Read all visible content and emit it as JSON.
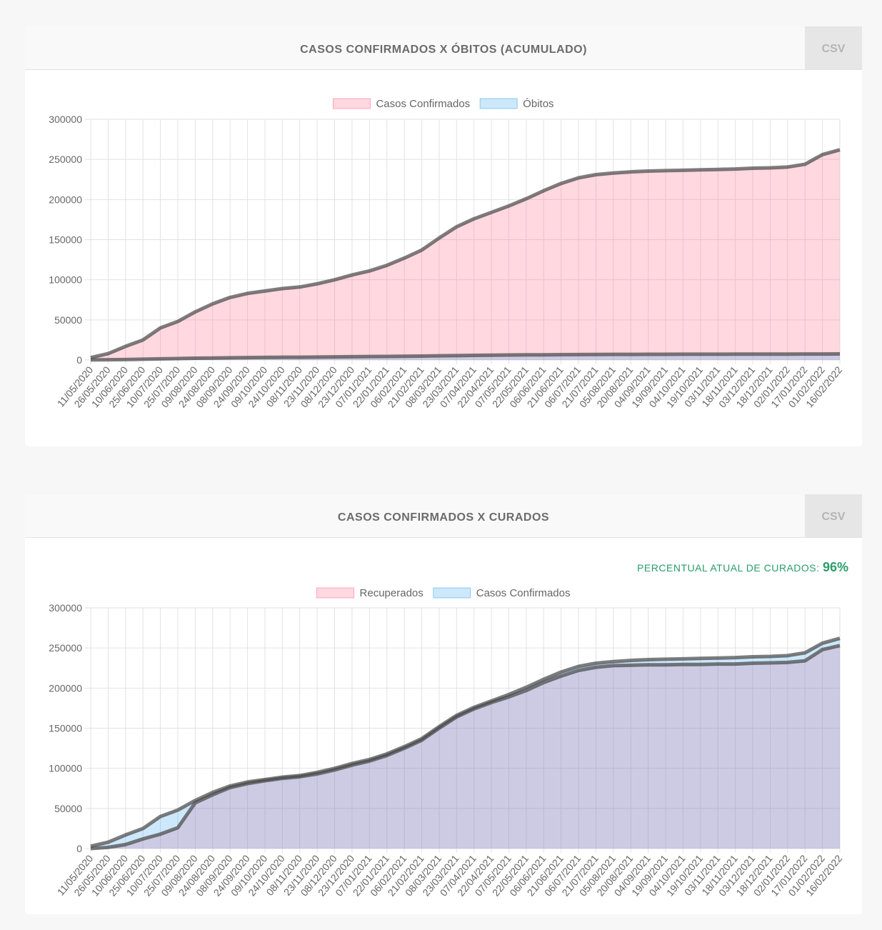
{
  "chart_data": [
    {
      "type": "area",
      "title": "CASOS CONFIRMADOS X ÓBITOS (ACUMULADO)",
      "categories": [
        "11/05/2020",
        "26/05/2020",
        "10/06/2020",
        "25/06/2020",
        "10/07/2020",
        "25/07/2020",
        "09/08/2020",
        "24/08/2020",
        "08/09/2020",
        "24/09/2020",
        "09/10/2020",
        "24/10/2020",
        "08/11/2020",
        "23/11/2020",
        "08/12/2020",
        "23/12/2020",
        "07/01/2021",
        "22/01/2021",
        "06/02/2021",
        "21/02/2021",
        "08/03/2021",
        "23/03/2021",
        "07/04/2021",
        "22/04/2021",
        "07/05/2021",
        "22/05/2021",
        "06/06/2021",
        "21/06/2021",
        "06/07/2021",
        "21/07/2021",
        "05/08/2021",
        "20/08/2021",
        "04/09/2021",
        "19/09/2021",
        "04/10/2021",
        "19/10/2021",
        "03/11/2021",
        "18/11/2021",
        "03/12/2021",
        "18/12/2021",
        "02/01/2022",
        "17/01/2022",
        "01/02/2022",
        "16/02/2022"
      ],
      "series": [
        {
          "name": "Casos Confirmados",
          "color": "rgba(255,99,132,0.25)",
          "values": [
            3000,
            8000,
            17000,
            25000,
            40000,
            48000,
            60000,
            70000,
            78000,
            83000,
            86000,
            89000,
            91000,
            95000,
            100000,
            106000,
            111000,
            118000,
            127000,
            137000,
            152000,
            166000,
            176000,
            184000,
            192000,
            201000,
            211000,
            220000,
            227000,
            231000,
            233000,
            234500,
            235500,
            236000,
            236500,
            237000,
            237500,
            238000,
            239000,
            239500,
            240500,
            244000,
            256000,
            262000
          ]
        },
        {
          "name": "Óbitos",
          "color": "rgba(54,162,235,0.25)",
          "values": [
            100,
            300,
            600,
            1000,
            1400,
            1800,
            2200,
            2500,
            2800,
            3000,
            3200,
            3400,
            3500,
            3700,
            3900,
            4100,
            4300,
            4500,
            4700,
            4900,
            5200,
            5500,
            5800,
            6000,
            6200,
            6400,
            6500,
            6700,
            6800,
            6900,
            7000,
            7000,
            7100,
            7100,
            7200,
            7200,
            7200,
            7300,
            7300,
            7300,
            7300,
            7400,
            7500,
            7600
          ]
        }
      ],
      "ylim": [
        0,
        300000
      ],
      "yticks": [
        0,
        50000,
        100000,
        150000,
        200000,
        250000,
        300000
      ],
      "grid": true,
      "legend": "top"
    },
    {
      "type": "area",
      "title": "CASOS CONFIRMADOS X CURADOS",
      "categories": [
        "11/05/2020",
        "26/05/2020",
        "10/06/2020",
        "25/06/2020",
        "10/07/2020",
        "25/07/2020",
        "09/08/2020",
        "24/08/2020",
        "08/09/2020",
        "24/09/2020",
        "09/10/2020",
        "24/10/2020",
        "08/11/2020",
        "23/11/2020",
        "08/12/2020",
        "23/12/2020",
        "07/01/2021",
        "22/01/2021",
        "06/02/2021",
        "21/02/2021",
        "08/03/2021",
        "23/03/2021",
        "07/04/2021",
        "22/04/2021",
        "07/05/2021",
        "22/05/2021",
        "06/06/2021",
        "21/06/2021",
        "06/07/2021",
        "21/07/2021",
        "05/08/2021",
        "20/08/2021",
        "04/09/2021",
        "19/09/2021",
        "04/10/2021",
        "19/10/2021",
        "03/11/2021",
        "18/11/2021",
        "03/12/2021",
        "18/12/2021",
        "02/01/2022",
        "17/01/2022",
        "01/02/2022",
        "16/02/2022"
      ],
      "series": [
        {
          "name": "Recuperados",
          "color": "rgba(255,99,132,0.25)",
          "values": [
            0,
            1500,
            5000,
            12000,
            18000,
            26000,
            57000,
            67000,
            76000,
            81000,
            84500,
            87500,
            89500,
            93000,
            98000,
            104000,
            109000,
            116000,
            125000,
            135000,
            150000,
            164000,
            174000,
            182000,
            189000,
            197000,
            207000,
            215000,
            222000,
            226000,
            228000,
            228500,
            229000,
            229000,
            229500,
            229500,
            230000,
            230000,
            231000,
            231500,
            232000,
            234000,
            248000,
            253000
          ]
        },
        {
          "name": "Casos Confirmados",
          "color": "rgba(54,162,235,0.25)",
          "values": [
            3000,
            8000,
            17000,
            25000,
            40000,
            48000,
            60000,
            70000,
            78000,
            83000,
            86000,
            89000,
            91000,
            95000,
            100000,
            106000,
            111000,
            118000,
            127000,
            137000,
            152000,
            166000,
            176000,
            184000,
            192000,
            201000,
            211000,
            220000,
            227000,
            231000,
            233000,
            234500,
            235500,
            236000,
            236500,
            237000,
            237500,
            238000,
            239000,
            239500,
            240500,
            244000,
            256000,
            262000
          ]
        }
      ],
      "ylim": [
        0,
        300000
      ],
      "yticks": [
        0,
        50000,
        100000,
        150000,
        200000,
        250000,
        300000
      ],
      "grid": true,
      "legend": "top"
    }
  ],
  "csv_buttons": [
    "CSV",
    "CSV"
  ],
  "cure_label": "PERCENTUAL ATUAL DE CURADOS:",
  "cure_value": "96%"
}
